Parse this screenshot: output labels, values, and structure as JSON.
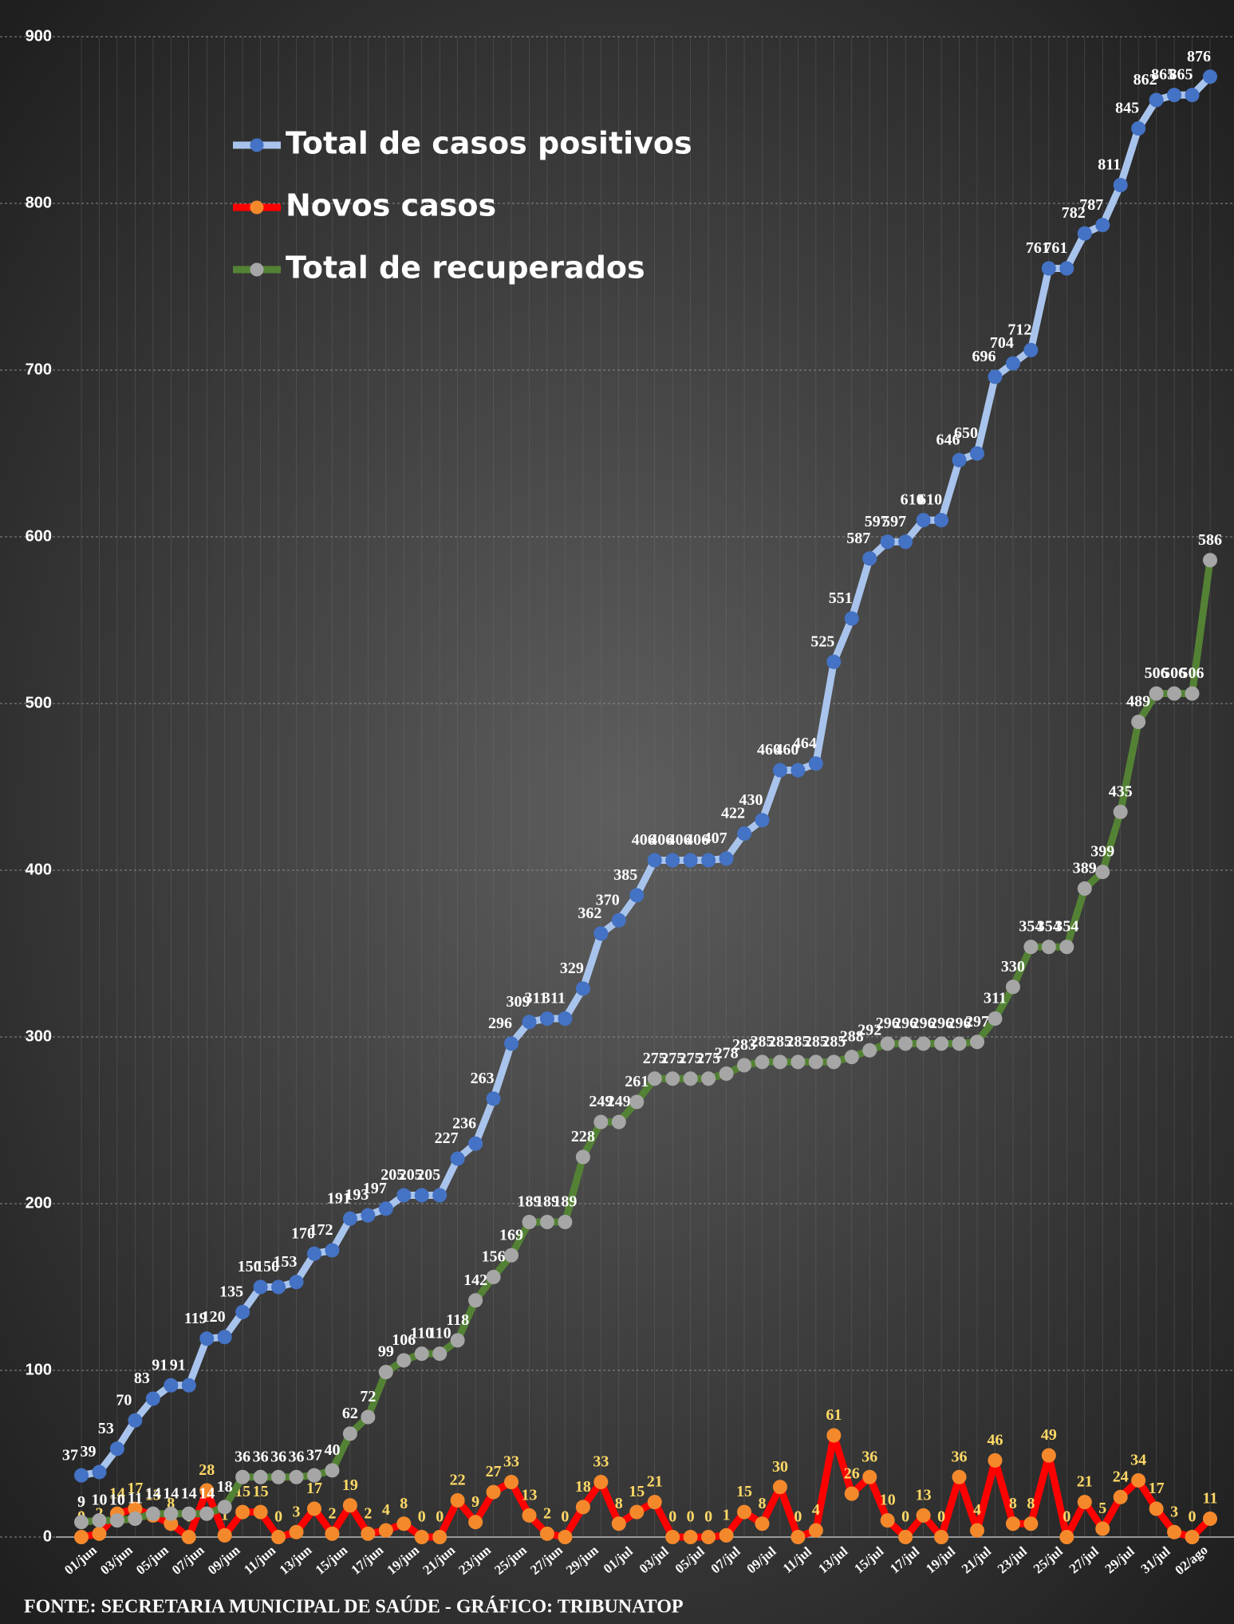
{
  "chart_data": {
    "type": "line",
    "categories": [
      "01/jun",
      null,
      "03/jun",
      null,
      "05/jun",
      null,
      "07/jun",
      null,
      "09/jun",
      null,
      "11/jun",
      null,
      "13/jun",
      null,
      "15/jun",
      null,
      "17/jun",
      null,
      "19/jun",
      null,
      "21/jun",
      null,
      "23/jun",
      null,
      "25/jun",
      null,
      "27/jun",
      null,
      "29/jun",
      null,
      "01/jul",
      null,
      "03/jul",
      null,
      "05/jul",
      null,
      "07/jul",
      null,
      "09/jul",
      null,
      "11/jul",
      null,
      "13/jul",
      null,
      "15/jul",
      null,
      "17/jul",
      null,
      "19/jul",
      null,
      "21/jul",
      null,
      "23/jul",
      null,
      "25/jul",
      null,
      "27/jul",
      null,
      "29/jul",
      null,
      "31/jul",
      null,
      "02/ago",
      null
    ],
    "series": [
      {
        "name": "Total de casos positivos",
        "color": "#a9c4ec",
        "marker_color": "#4472c4",
        "label_color": "#ffffff",
        "values": [
          37,
          39,
          53,
          70,
          83,
          91,
          91,
          119,
          120,
          135,
          150,
          150,
          153,
          170,
          172,
          191,
          193,
          197,
          205,
          205,
          205,
          227,
          236,
          263,
          296,
          309,
          311,
          311,
          329,
          362,
          370,
          385,
          406,
          406,
          406,
          406,
          407,
          422,
          430,
          460,
          460,
          464,
          525,
          551,
          587,
          597,
          597,
          610,
          610,
          646,
          650,
          696,
          704,
          712,
          761,
          761,
          782,
          787,
          811,
          845,
          862,
          865,
          865,
          876
        ]
      },
      {
        "name": "Novos casos",
        "color": "#ff0000",
        "marker_color": "#f4892c",
        "label_color": "#ffd966",
        "values": [
          0,
          2,
          14,
          17,
          13,
          8,
          0,
          28,
          1,
          15,
          15,
          0,
          3,
          17,
          2,
          19,
          2,
          4,
          8,
          0,
          0,
          22,
          9,
          27,
          33,
          13,
          2,
          0,
          18,
          33,
          8,
          15,
          21,
          0,
          0,
          0,
          1,
          15,
          8,
          30,
          0,
          4,
          61,
          26,
          36,
          10,
          0,
          13,
          0,
          36,
          4,
          46,
          8,
          8,
          49,
          0,
          21,
          5,
          24,
          34,
          17,
          3,
          0,
          11
        ]
      },
      {
        "name": "Total de recuperados",
        "color": "#548235",
        "marker_color": "#a6a6a6",
        "label_color": "#ffffff",
        "values": [
          9,
          10,
          10,
          11,
          14,
          14,
          14,
          14,
          18,
          36,
          36,
          36,
          36,
          37,
          40,
          62,
          72,
          99,
          106,
          110,
          110,
          118,
          142,
          156,
          169,
          189,
          189,
          189,
          228,
          249,
          249,
          261,
          275,
          275,
          275,
          275,
          278,
          283,
          285,
          285,
          285,
          285,
          285,
          288,
          292,
          296,
          296,
          296,
          296,
          296,
          297,
          311,
          330,
          354,
          354,
          354,
          389,
          399,
          435,
          489,
          506,
          506,
          506,
          586
        ]
      }
    ],
    "ylim": [
      0,
      900
    ],
    "yticks": [
      0,
      100,
      200,
      300,
      400,
      500,
      600,
      700,
      800,
      900
    ],
    "grid": true,
    "legend": "upper left",
    "source": "FONTE: SECRETARIA MUNICIPAL DE SAÚDE - GRÁFICO: TRIBUNATOP"
  }
}
